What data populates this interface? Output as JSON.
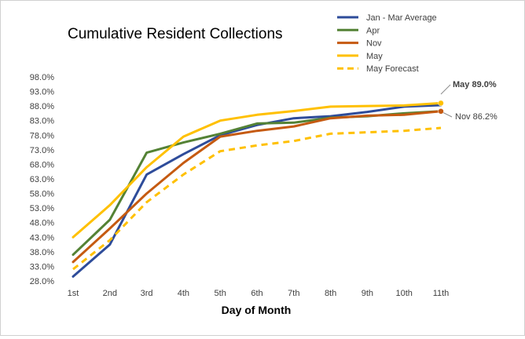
{
  "chart_data": {
    "type": "line",
    "title": "Cumulative Resident Collections",
    "xlabel": "Day of Month",
    "ylabel": "",
    "categories": [
      "1st",
      "2nd",
      "3rd",
      "4th",
      "5th",
      "6th",
      "7th",
      "8th",
      "9th",
      "10th",
      "11th"
    ],
    "ylim": [
      28.0,
      98.0
    ],
    "yticks": [
      "28.0%",
      "33.0%",
      "38.0%",
      "43.0%",
      "48.0%",
      "53.0%",
      "58.0%",
      "63.0%",
      "68.0%",
      "73.0%",
      "78.0%",
      "83.0%",
      "88.0%",
      "93.0%",
      "98.0%"
    ],
    "grid": false,
    "legend_position": "top-right",
    "series": [
      {
        "name": "Jan - Mar Average",
        "color": "#2E4C9A",
        "dashed": false,
        "values": [
          29.5,
          40.5,
          64.5,
          71.5,
          78.0,
          81.5,
          83.8,
          84.5,
          86.0,
          87.8,
          88.3
        ]
      },
      {
        "name": "Apr",
        "color": "#548235",
        "dashed": false,
        "values": [
          37.0,
          49.0,
          72.0,
          75.5,
          78.5,
          82.0,
          82.3,
          84.0,
          84.5,
          85.5,
          86.2
        ]
      },
      {
        "name": "Nov",
        "color": "#C55A11",
        "dashed": false,
        "values": [
          34.5,
          46.0,
          58.0,
          68.5,
          77.5,
          79.5,
          81.0,
          83.8,
          84.7,
          85.0,
          86.2
        ]
      },
      {
        "name": "May",
        "color": "#FFC000",
        "dashed": false,
        "values": [
          43.0,
          54.0,
          67.0,
          77.5,
          83.0,
          85.0,
          86.3,
          87.8,
          88.0,
          88.2,
          89.0
        ]
      },
      {
        "name": "May Forecast",
        "color": "#FFC000",
        "dashed": true,
        "values": [
          32.0,
          42.0,
          55.0,
          64.5,
          72.5,
          74.5,
          76.0,
          78.5,
          79.0,
          79.5,
          80.5
        ]
      }
    ],
    "annotations": [
      {
        "text": "May 89.0%",
        "series": "May",
        "bold": true
      },
      {
        "text": "Nov 86.2%",
        "series": "Nov",
        "bold": false
      }
    ]
  }
}
